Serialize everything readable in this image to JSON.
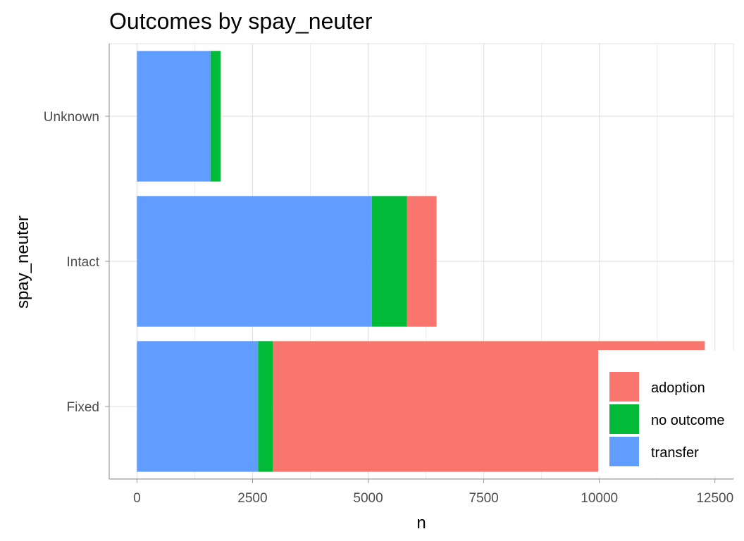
{
  "chart_data": {
    "type": "bar",
    "orientation": "horizontal",
    "stacked": true,
    "title": "Outcomes by spay_neuter",
    "xlabel": "n",
    "ylabel": "spay_neuter",
    "categories": [
      "Fixed",
      "Intact",
      "Unknown"
    ],
    "series": [
      {
        "name": "transfer",
        "color": "#619CFF",
        "values": [
          2620,
          5080,
          1590
        ]
      },
      {
        "name": "no outcome",
        "color": "#00BA38",
        "values": [
          320,
          760,
          220
        ]
      },
      {
        "name": "adoption",
        "color": "#F8766D",
        "values": [
          9340,
          640,
          0
        ]
      }
    ],
    "xlim": [
      -600,
      12900
    ],
    "xticks": [
      0,
      2500,
      5000,
      7500,
      10000,
      12500
    ],
    "grid": true,
    "legend_position": "bottom-right",
    "legend_order": [
      "adoption",
      "no outcome",
      "transfer"
    ]
  }
}
